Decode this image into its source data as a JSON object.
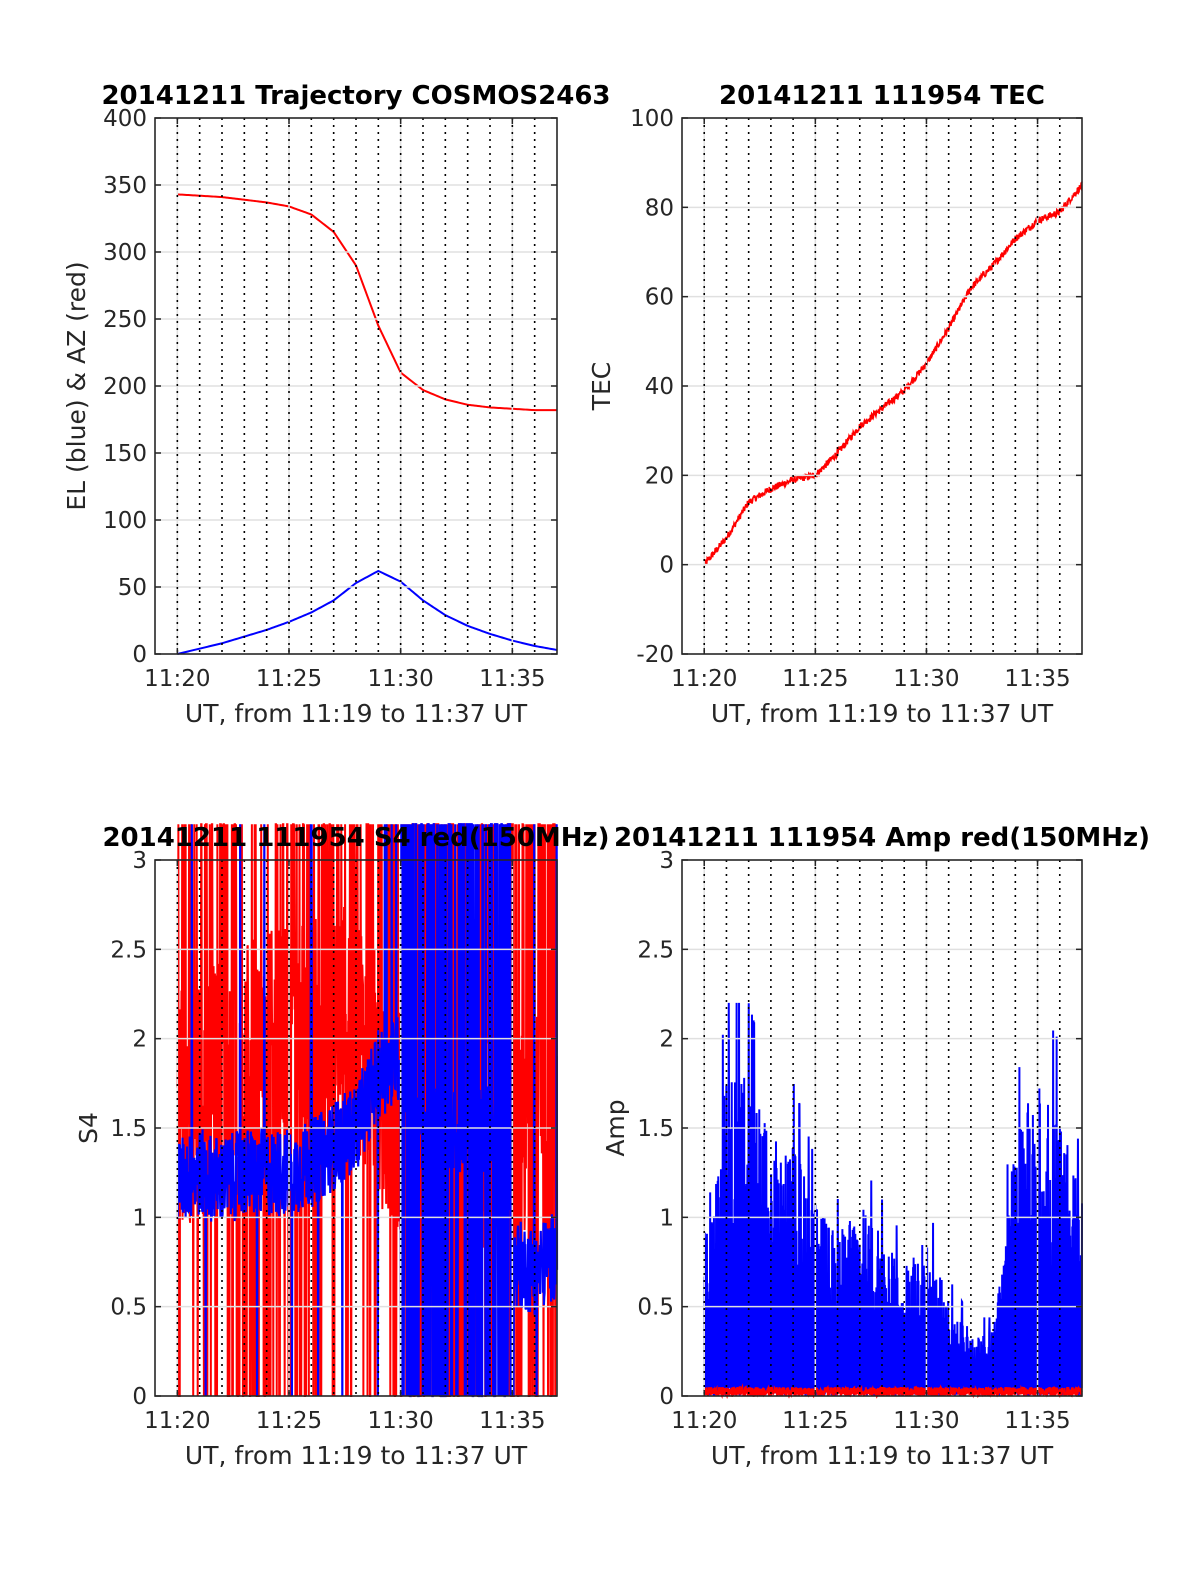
{
  "colors": {
    "red": "#ff0000",
    "blue": "#0000ff",
    "axis": "#262626",
    "grid": "#e0e0e0",
    "vgrid": "#000000"
  },
  "chart_data": [
    {
      "type": "line",
      "title": "20141211 Trajectory COSMOS2463",
      "xlabel": "UT, from 11:19 to 11:37 UT",
      "ylabel": "EL (blue) & AZ (red)",
      "xlim": [
        "11:19",
        "11:37"
      ],
      "ylim": [
        0,
        400
      ],
      "xticks": [
        "11:20",
        "11:25",
        "11:30",
        "11:35"
      ],
      "yticks": [
        "0",
        "50",
        "100",
        "150",
        "200",
        "250",
        "300",
        "350",
        "400"
      ],
      "grid": true,
      "series": [
        {
          "color": "blue",
          "x": [
            "11:20",
            "11:21",
            "11:22",
            "11:23",
            "11:24",
            "11:25",
            "11:26",
            "11:27",
            "11:28",
            "11:29",
            "11:30",
            "11:31",
            "11:32",
            "11:33",
            "11:34",
            "11:35",
            "11:36",
            "11:37"
          ],
          "values": [
            0,
            4,
            8,
            13,
            18,
            24,
            31,
            40,
            53,
            62,
            54,
            40,
            29,
            21,
            15,
            10,
            6,
            3
          ]
        },
        {
          "color": "red",
          "x": [
            "11:20",
            "11:21",
            "11:22",
            "11:23",
            "11:24",
            "11:25",
            "11:26",
            "11:27",
            "11:28",
            "11:29",
            "11:30",
            "11:31",
            "11:32",
            "11:33",
            "11:34",
            "11:35",
            "11:36",
            "11:37"
          ],
          "values": [
            343,
            342,
            341,
            339,
            337,
            334,
            328,
            315,
            290,
            245,
            210,
            197,
            190,
            186,
            184,
            183,
            182,
            182
          ]
        }
      ]
    },
    {
      "type": "line",
      "title": "20141211 111954 TEC",
      "xlabel": "UT, from 11:19 to 11:37 UT",
      "ylabel": "TEC",
      "xlim": [
        "11:19",
        "11:37"
      ],
      "ylim": [
        -20,
        100
      ],
      "xticks": [
        "11:20",
        "11:25",
        "11:30",
        "11:35"
      ],
      "yticks": [
        "-20",
        "0",
        "20",
        "40",
        "60",
        "80",
        "100"
      ],
      "grid": true,
      "series": [
        {
          "color": "red",
          "x": [
            "11:20",
            "11:21",
            "11:22",
            "11:23",
            "11:24",
            "11:25",
            "11:26",
            "11:27",
            "11:28",
            "11:29",
            "11:30",
            "11:31",
            "11:32",
            "11:33",
            "11:34",
            "11:35",
            "11:36",
            "11:37"
          ],
          "values": [
            0,
            6,
            14,
            17,
            19,
            20,
            25,
            31,
            35,
            39,
            45,
            53,
            62,
            67,
            73,
            77,
            79,
            85
          ]
        }
      ]
    },
    {
      "type": "line",
      "title": "20141211 111954 S4 red(150MHz)",
      "xlabel": "UT, from 11:19 to 11:37 UT",
      "ylabel": "S4",
      "xlim": [
        "11:19",
        "11:37"
      ],
      "ylim": [
        0,
        3
      ],
      "xticks": [
        "11:20",
        "11:25",
        "11:30",
        "11:35"
      ],
      "yticks": [
        "0",
        "0.5",
        "1",
        "1.5",
        "2",
        "2.5",
        "3"
      ],
      "grid": true,
      "series": [
        {
          "color": "red",
          "x": [
            "11:20",
            "11:22",
            "11:24",
            "11:26",
            "11:28",
            "11:30",
            "11:32",
            "11:34",
            "11:36",
            "11:37"
          ],
          "values": [
            1.6,
            1.8,
            1.9,
            2.0,
            2.1,
            1.5,
            1.5,
            1.5,
            1.5,
            1.5
          ]
        },
        {
          "color": "blue",
          "x": [
            "11:20",
            "11:21",
            "11:22",
            "11:23",
            "11:24",
            "11:25",
            "11:26",
            "11:27",
            "11:28",
            "11:29",
            "11:30",
            "11:31",
            "11:32",
            "11:33",
            "11:34",
            "11:35",
            "11:36",
            "11:37"
          ],
          "values": [
            1.2,
            1.25,
            1.2,
            1.25,
            1.25,
            1.25,
            1.3,
            1.4,
            1.5,
            1.8,
            1.9,
            1.5,
            1.5,
            1.5,
            1.5,
            0.75,
            0.7,
            0.8
          ]
        }
      ]
    },
    {
      "type": "line",
      "title": "20141211 111954 Amp red(150MHz)",
      "xlabel": "UT, from 11:19 to 11:37 UT",
      "ylabel": "Amp",
      "xlim": [
        "11:19",
        "11:37"
      ],
      "ylim": [
        0,
        3
      ],
      "xticks": [
        "11:20",
        "11:25",
        "11:30",
        "11:35"
      ],
      "yticks": [
        "0",
        "0.5",
        "1",
        "1.5",
        "2",
        "2.5",
        "3"
      ],
      "grid": true,
      "series": [
        {
          "color": "blue",
          "x": [
            "11:20",
            "11:21",
            "11:22",
            "11:23",
            "11:24",
            "11:25",
            "11:26",
            "11:27",
            "11:28",
            "11:29",
            "11:30",
            "11:31",
            "11:32",
            "11:33",
            "11:34",
            "11:35",
            "11:36",
            "11:37"
          ],
          "values": [
            0.5,
            1.0,
            1.0,
            0.8,
            0.8,
            0.6,
            0.5,
            0.6,
            0.5,
            0.4,
            0.5,
            0.3,
            0.2,
            0.2,
            0.8,
            1.0,
            0.9,
            0.6
          ]
        },
        {
          "color": "red",
          "x": [
            "11:20",
            "11:37"
          ],
          "values": [
            0.05,
            0.05
          ]
        }
      ]
    }
  ]
}
